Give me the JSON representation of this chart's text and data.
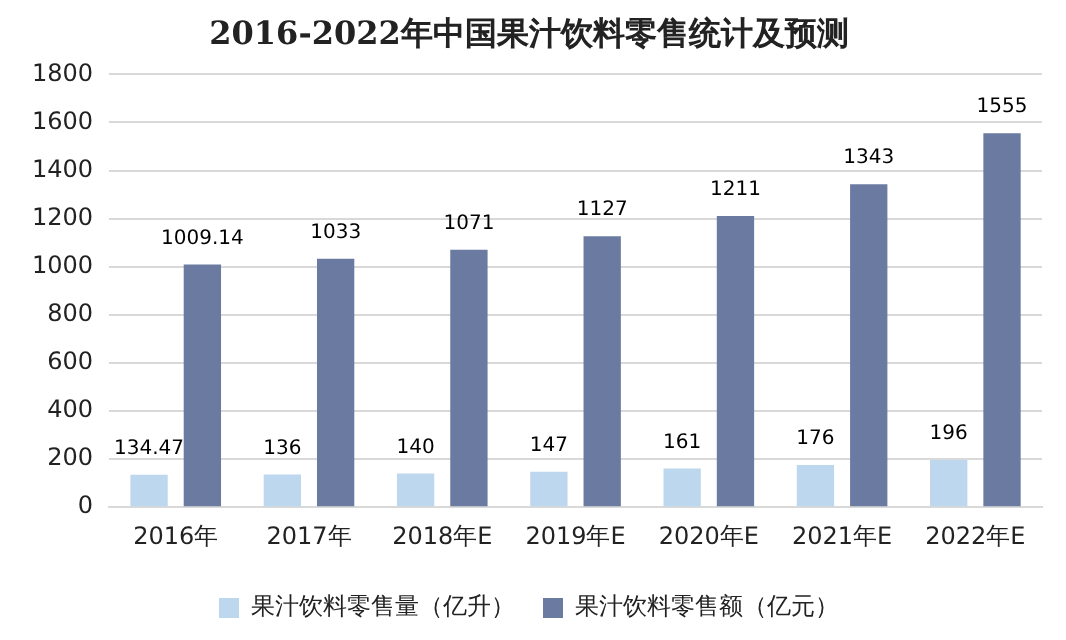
{
  "chart_data": {
    "type": "bar",
    "title": "2016-2022年中国果汁饮料零售统计及预测",
    "categories": [
      "2016年",
      "2017年",
      "2018年E",
      "2019年E",
      "2020年E",
      "2021年E",
      "2022年E"
    ],
    "series": [
      {
        "name": "果汁饮料零售量（亿升）",
        "color": "#bdd7ee",
        "values": [
          134.47,
          136,
          140,
          147,
          161,
          176,
          196
        ]
      },
      {
        "name": "果汁饮料零售额（亿元）",
        "color": "#6a7aa0",
        "values": [
          1009.14,
          1033,
          1071,
          1127,
          1211,
          1343,
          1555
        ]
      }
    ],
    "ylim": [
      0,
      1800
    ],
    "yticks": [
      0,
      200,
      400,
      600,
      800,
      1000,
      1200,
      1400,
      1600,
      1800
    ],
    "grid": "y",
    "legend": "bottom",
    "data_labels": true
  }
}
